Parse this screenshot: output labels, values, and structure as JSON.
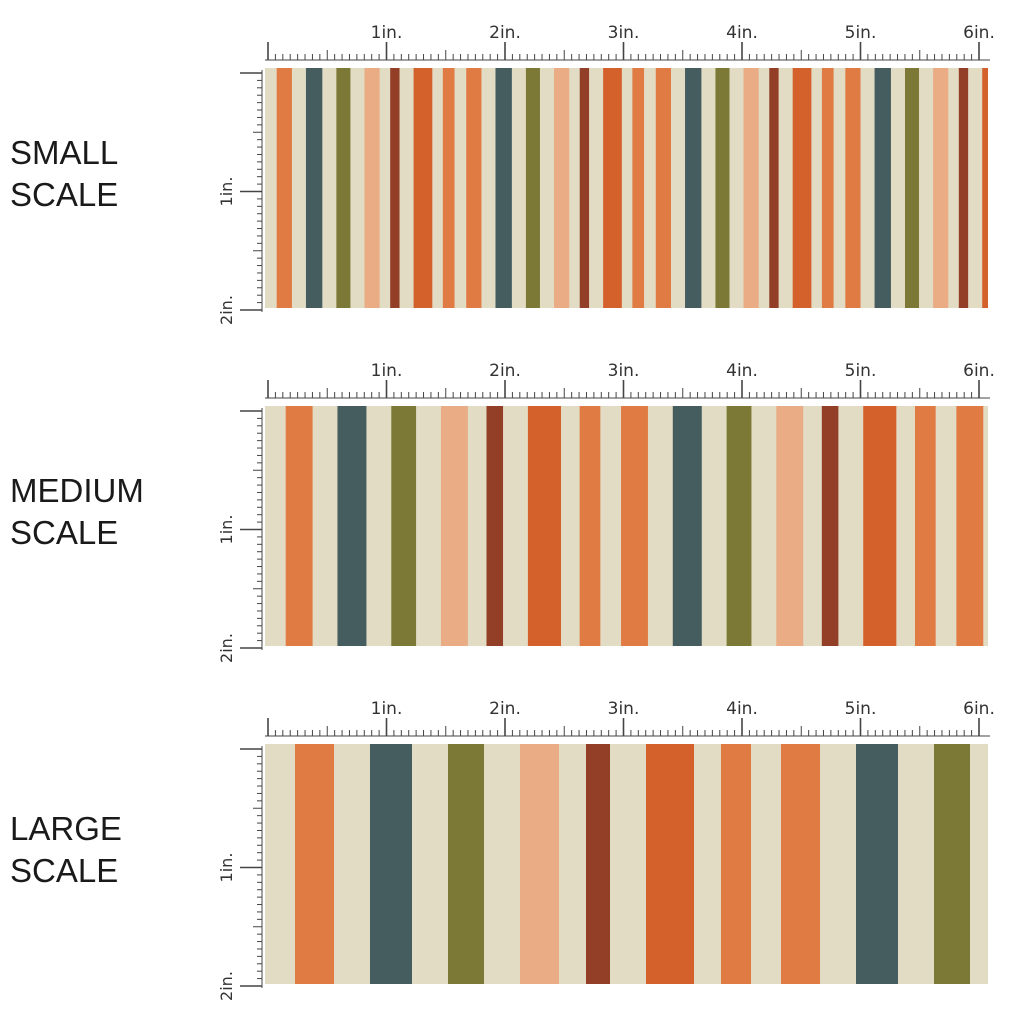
{
  "sections": [
    {
      "id": "small",
      "label_line1": "SMALL",
      "label_line2": "SCALE",
      "stripe_unit": 11.7
    },
    {
      "id": "medium",
      "label_line1": "MEDIUM",
      "label_line2": "SCALE",
      "stripe_unit": 20.7
    },
    {
      "id": "large",
      "label_line1": "LARGE",
      "label_line2": "SCALE",
      "stripe_unit": 30.0
    }
  ],
  "ruler": {
    "horizontal_labels": [
      "1in.",
      "2in.",
      "3in.",
      "4in.",
      "5in.",
      "6in."
    ],
    "vertical_labels": [
      "1in.",
      "2in."
    ]
  },
  "colors": {
    "cream": "#e3dcc5",
    "rust": "#d4612c",
    "burnt_orange": "#e07b43",
    "slate": "#465d60",
    "olive": "#7b7935",
    "peach": "#e9ac84",
    "brick": "#933f27",
    "ruler_line": "#444444"
  },
  "stripe_pattern": [
    [
      "cream",
      1
    ],
    [
      "burnt_orange",
      1.3
    ],
    [
      "cream",
      1.2
    ],
    [
      "slate",
      1.4
    ],
    [
      "cream",
      1.2
    ],
    [
      "olive",
      1.2
    ],
    [
      "cream",
      1.2
    ],
    [
      "peach",
      1.3
    ],
    [
      "cream",
      0.9
    ],
    [
      "brick",
      0.8
    ],
    [
      "cream",
      1.2
    ],
    [
      "rust",
      1.6
    ],
    [
      "cream",
      0.9
    ],
    [
      "burnt_orange",
      1.0
    ]
  ]
}
